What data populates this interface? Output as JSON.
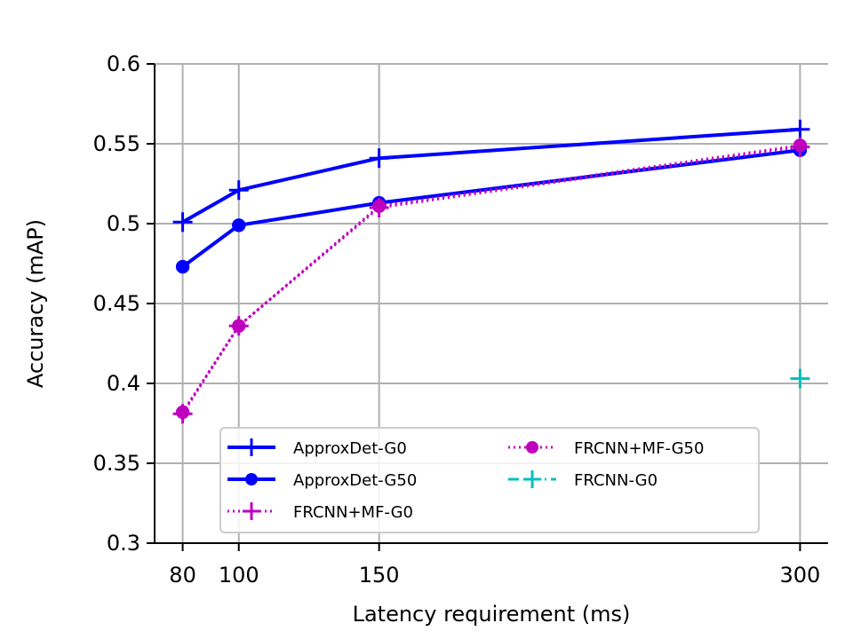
{
  "chart_data": {
    "type": "line",
    "xlabel": "Latency requirement (ms)",
    "ylabel": "Accuracy (mAP)",
    "x_ticks": [
      80,
      100,
      150,
      300
    ],
    "x_tick_labels": [
      "80",
      "100",
      "150",
      "300"
    ],
    "y_ticks": [
      0.3,
      0.35,
      0.4,
      0.45,
      0.5,
      0.55,
      0.6
    ],
    "y_tick_labels": [
      "0.3",
      "0.35",
      "0.4",
      "0.45",
      "0.5",
      "0.55",
      "0.6"
    ],
    "xlim": [
      70,
      310
    ],
    "ylim": [
      0.3,
      0.6
    ],
    "grid": true,
    "legend_position": "bottom-center",
    "series": [
      {
        "name": "ApproxDet-G0",
        "color": "#0000ff",
        "marker": "plus",
        "linestyle": "solid",
        "x": [
          80,
          100,
          150,
          300
        ],
        "y": [
          0.501,
          0.521,
          0.541,
          0.559
        ]
      },
      {
        "name": "ApproxDet-G50",
        "color": "#0000ff",
        "marker": "circle",
        "linestyle": "solid",
        "x": [
          80,
          100,
          150,
          300
        ],
        "y": [
          0.473,
          0.499,
          0.513,
          0.546
        ]
      },
      {
        "name": "FRCNN+MF-G0",
        "color": "#bf00bf",
        "marker": "plus",
        "linestyle": "dotted",
        "x": [
          80,
          100,
          150,
          300
        ],
        "y": [
          0.381,
          0.436,
          0.51,
          0.548
        ]
      },
      {
        "name": "FRCNN+MF-G50",
        "color": "#bf00bf",
        "marker": "circle",
        "linestyle": "dotted",
        "x": [
          80,
          100,
          150,
          300
        ],
        "y": [
          0.382,
          0.436,
          0.511,
          0.549
        ]
      },
      {
        "name": "FRCNN-G0",
        "color": "#00bfbf",
        "marker": "plus",
        "linestyle": "dashdot",
        "x": [
          300
        ],
        "y": [
          0.403
        ]
      }
    ]
  }
}
